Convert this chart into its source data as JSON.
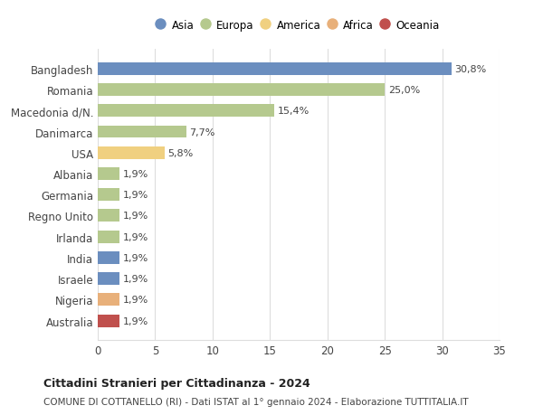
{
  "categories": [
    "Bangladesh",
    "Romania",
    "Macedonia d/N.",
    "Danimarca",
    "USA",
    "Albania",
    "Germania",
    "Regno Unito",
    "Irlanda",
    "India",
    "Israele",
    "Nigeria",
    "Australia"
  ],
  "values": [
    30.8,
    25.0,
    15.4,
    7.7,
    5.8,
    1.9,
    1.9,
    1.9,
    1.9,
    1.9,
    1.9,
    1.9,
    1.9
  ],
  "labels": [
    "30,8%",
    "25,0%",
    "15,4%",
    "7,7%",
    "5,8%",
    "1,9%",
    "1,9%",
    "1,9%",
    "1,9%",
    "1,9%",
    "1,9%",
    "1,9%",
    "1,9%"
  ],
  "bar_colors": [
    "#6b8ebf",
    "#b5c98e",
    "#b5c98e",
    "#b5c98e",
    "#f0d080",
    "#b5c98e",
    "#b5c98e",
    "#b5c98e",
    "#b5c98e",
    "#6b8ebf",
    "#6b8ebf",
    "#e8b07a",
    "#c0504d"
  ],
  "legend_labels": [
    "Asia",
    "Europa",
    "America",
    "Africa",
    "Oceania"
  ],
  "legend_colors": [
    "#6b8ebf",
    "#b5c98e",
    "#f0d080",
    "#e8b07a",
    "#c0504d"
  ],
  "xlim": [
    0,
    35
  ],
  "xticks": [
    0,
    5,
    10,
    15,
    20,
    25,
    30,
    35
  ],
  "title": "Cittadini Stranieri per Cittadinanza - 2024",
  "subtitle": "COMUNE DI COTTANELLO (RI) - Dati ISTAT al 1° gennaio 2024 - Elaborazione TUTTITALIA.IT",
  "background_color": "#ffffff",
  "grid_color": "#dddddd",
  "bar_height": 0.6
}
